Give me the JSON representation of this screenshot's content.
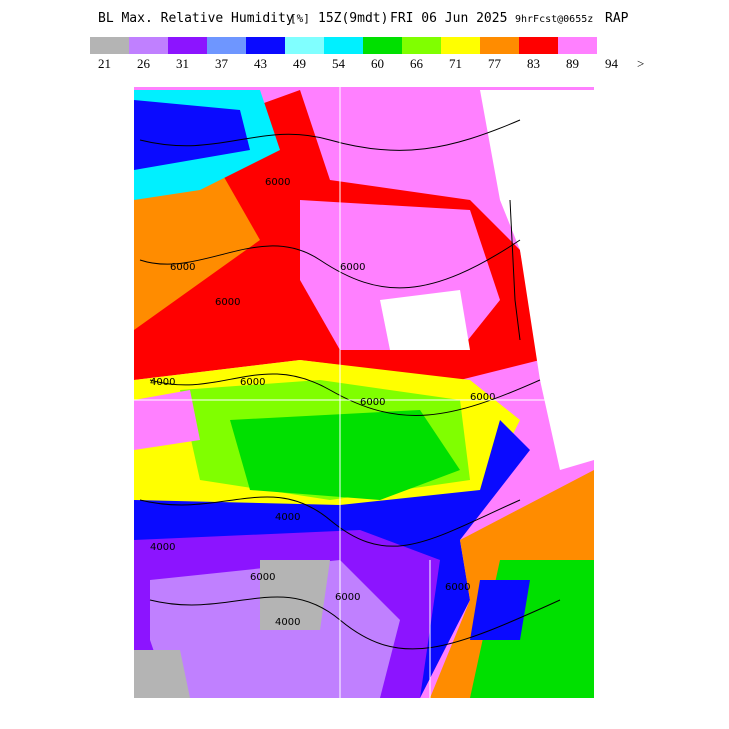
{
  "header": {
    "title": "BL Max. Relative Humidity",
    "unit": "[%]",
    "time": "15Z(9mdt)",
    "date": "FRI 06 Jun 2025",
    "forecast": "9hrFcst@0655z",
    "model": "RAP"
  },
  "legend": {
    "colors": [
      "#b4b4b4",
      "#c080ff",
      "#8c14ff",
      "#6e96ff",
      "#0a0aff",
      "#80ffff",
      "#00f0ff",
      "#00e000",
      "#80ff00",
      "#ffff00",
      "#ff8c00",
      "#ff0000",
      "#ff80ff"
    ],
    "labels": [
      21,
      26,
      31,
      37,
      43,
      49,
      54,
      60,
      66,
      71,
      77,
      83,
      89,
      94,
      ">"
    ]
  },
  "map": {
    "contour_labels": [
      "6000",
      "6000",
      "6000",
      "6000",
      "4000",
      "6000",
      "6000",
      "6000",
      "4000",
      "4000",
      "6000",
      "4000",
      "6000",
      "6000"
    ]
  }
}
